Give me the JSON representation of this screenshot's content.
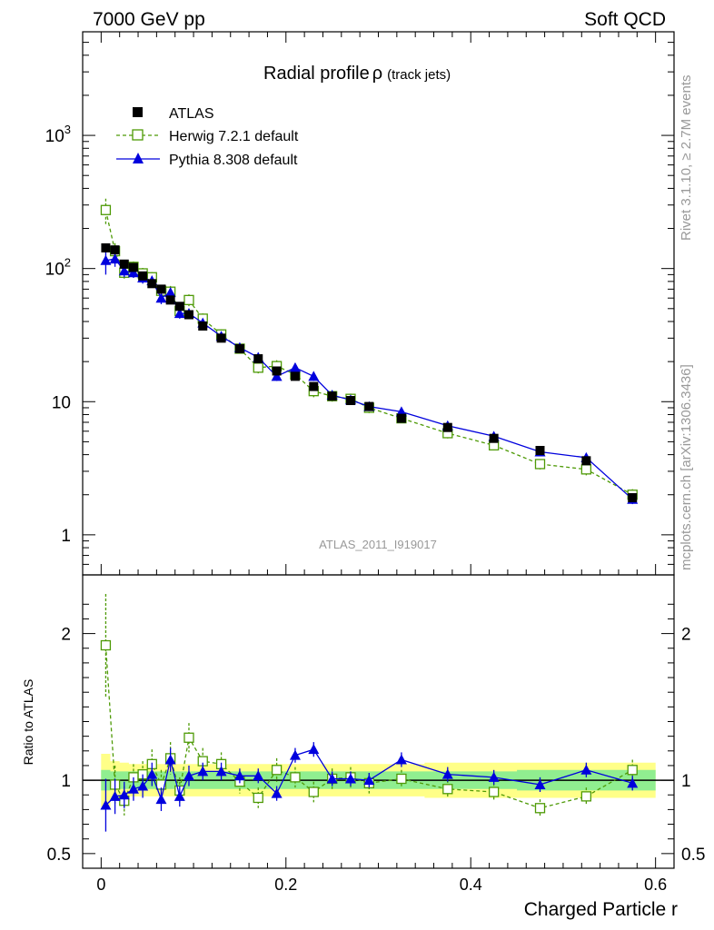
{
  "header": {
    "left": "7000 GeV pp",
    "right": "Soft QCD"
  },
  "side_labels": {
    "rivet": "Rivet 3.1.10, ≥ 2.7M events",
    "mcplots": "mcplots.cern.ch [arXiv:1306.3436]"
  },
  "analysis_id": "ATLAS_2011_I919017",
  "colors": {
    "atlas": "#000000",
    "herwig": "#4e9a06",
    "pythia": "#0000dd",
    "band_inner": "#90ee90",
    "band_outer": "#ffff88"
  },
  "chart_data": [
    {
      "type": "scatter",
      "panel": "main",
      "title": "Radial profile",
      "title_symbol": "ρ",
      "title_suffix": "(track jets)",
      "yscale": "log",
      "ylim": [
        0.5,
        6000
      ],
      "xlim": [
        -0.02,
        0.62
      ],
      "ytick_labels": [
        "1",
        "10",
        "10",
        "10"
      ],
      "ytick_exponents": [
        "",
        "",
        "2",
        "3"
      ],
      "legend": [
        "ATLAS",
        "Herwig 7.2.1 default",
        "Pythia 8.308 default"
      ],
      "x": [
        0.005,
        0.015,
        0.025,
        0.035,
        0.045,
        0.055,
        0.065,
        0.075,
        0.085,
        0.095,
        0.11,
        0.13,
        0.15,
        0.17,
        0.19,
        0.21,
        0.23,
        0.25,
        0.27,
        0.29,
        0.325,
        0.375,
        0.425,
        0.475,
        0.525,
        0.575
      ],
      "series": [
        {
          "name": "ATLAS",
          "values": [
            143,
            138,
            108,
            102,
            88,
            77,
            70,
            58,
            52,
            45,
            37,
            30,
            25,
            21,
            17,
            15.5,
            13,
            11,
            10.2,
            9.2,
            7.5,
            6.4,
            5.3,
            4.3,
            3.6,
            1.9
          ]
        },
        {
          "name": "Herwig 7.2.1 default",
          "values": [
            275,
            135,
            93,
            103,
            92,
            86,
            68,
            67,
            48,
            58,
            42,
            32,
            25,
            18,
            18.5,
            16,
            12,
            11,
            10.5,
            9,
            7.5,
            5.8,
            4.7,
            3.4,
            3.1,
            2.0
          ],
          "errors": [
            60,
            20,
            10,
            10,
            9,
            8,
            7,
            7,
            5,
            6,
            4,
            3,
            2,
            2,
            2,
            1.5,
            1.2,
            1,
            1,
            0.8,
            0.6,
            0.5,
            0.4,
            0.3,
            0.3,
            0.2
          ]
        },
        {
          "name": "Pythia 8.308 default",
          "values": [
            115,
            118,
            96,
            93,
            85,
            81,
            60,
            66,
            46,
            46,
            39,
            31,
            25.5,
            21.5,
            15.5,
            18,
            15.5,
            11.2,
            10.3,
            9.2,
            8.4,
            6.6,
            5.5,
            4.2,
            3.8,
            1.85
          ],
          "errors": [
            25,
            15,
            10,
            8,
            8,
            7,
            6,
            6,
            4,
            4,
            3,
            2,
            2,
            1.8,
            1.2,
            1.4,
            1.2,
            0.9,
            0.8,
            0.7,
            0.6,
            0.5,
            0.4,
            0.3,
            0.3,
            0.15
          ]
        }
      ]
    },
    {
      "type": "scatter",
      "panel": "ratio",
      "ylabel": "Ratio to ATLAS",
      "xlabel": "Charged Particle r",
      "ylim": [
        0.4,
        2.4
      ],
      "yticks": [
        0.5,
        1,
        2
      ],
      "ytick_labels": [
        "0.5",
        "1",
        "2"
      ],
      "xticks": [
        0,
        0.2,
        0.4,
        0.6
      ],
      "xtick_labels": [
        "0",
        "0.2",
        "0.4",
        "0.6"
      ],
      "x": [
        0.005,
        0.015,
        0.025,
        0.035,
        0.045,
        0.055,
        0.065,
        0.075,
        0.085,
        0.095,
        0.11,
        0.13,
        0.15,
        0.17,
        0.19,
        0.21,
        0.23,
        0.25,
        0.27,
        0.29,
        0.325,
        0.375,
        0.425,
        0.475,
        0.525,
        0.575
      ],
      "band_inner": [
        0.07,
        0.06,
        0.06,
        0.06,
        0.06,
        0.06,
        0.06,
        0.06,
        0.06,
        0.06,
        0.06,
        0.06,
        0.06,
        0.06,
        0.06,
        0.06,
        0.06,
        0.06,
        0.06,
        0.06,
        0.06,
        0.06,
        0.06,
        0.07,
        0.07,
        0.07
      ],
      "band_outer": [
        0.18,
        0.13,
        0.12,
        0.11,
        0.11,
        0.11,
        0.11,
        0.11,
        0.11,
        0.11,
        0.11,
        0.11,
        0.11,
        0.11,
        0.11,
        0.11,
        0.11,
        0.11,
        0.11,
        0.11,
        0.11,
        0.12,
        0.12,
        0.12,
        0.12,
        0.12
      ],
      "series": [
        {
          "name": "Herwig 7.2.1 default",
          "values": [
            1.92,
            0.97,
            0.86,
            1.02,
            1.04,
            1.11,
            0.97,
            1.15,
            0.93,
            1.29,
            1.13,
            1.11,
            0.99,
            0.88,
            1.07,
            1.02,
            0.92,
            1.01,
            1.02,
            0.98,
            1.01,
            0.94,
            0.92,
            0.81,
            0.89,
            1.07
          ],
          "errors": [
            0.35,
            0.13,
            0.1,
            0.09,
            0.09,
            0.1,
            0.1,
            0.11,
            0.09,
            0.1,
            0.09,
            0.08,
            0.08,
            0.07,
            0.08,
            0.07,
            0.07,
            0.07,
            0.07,
            0.07,
            0.06,
            0.06,
            0.06,
            0.06,
            0.06,
            0.07
          ]
        },
        {
          "name": "Pythia 8.308 default",
          "values": [
            0.83,
            0.89,
            0.9,
            0.94,
            0.96,
            1.04,
            0.87,
            1.14,
            0.89,
            1.03,
            1.06,
            1.06,
            1.03,
            1.03,
            0.91,
            1.17,
            1.21,
            1.01,
            1.01,
            1.0,
            1.14,
            1.04,
            1.02,
            0.97,
            1.07,
            0.98
          ],
          "errors": [
            0.18,
            0.12,
            0.09,
            0.08,
            0.08,
            0.08,
            0.08,
            0.08,
            0.07,
            0.07,
            0.06,
            0.06,
            0.05,
            0.05,
            0.05,
            0.05,
            0.05,
            0.05,
            0.05,
            0.05,
            0.05,
            0.05,
            0.05,
            0.05,
            0.05,
            0.05
          ]
        }
      ]
    }
  ]
}
